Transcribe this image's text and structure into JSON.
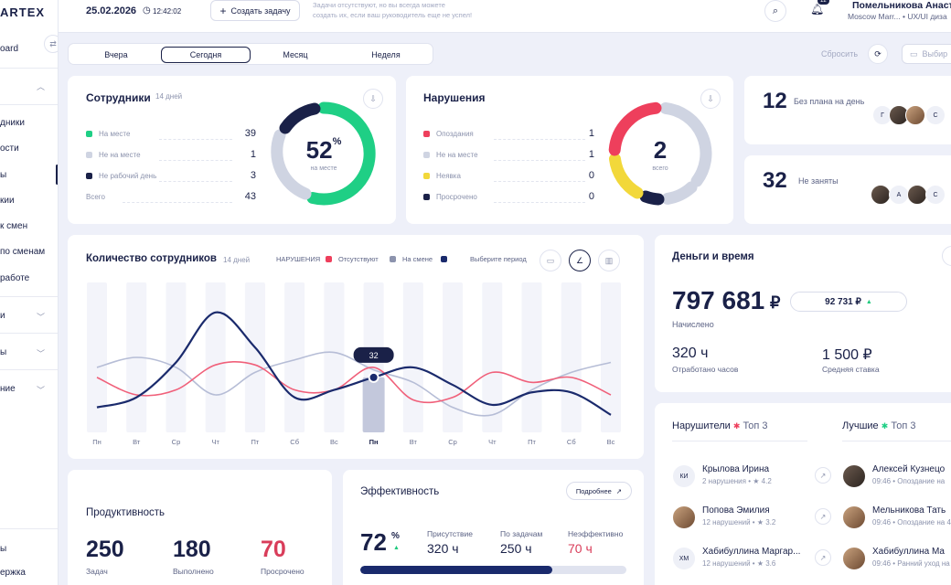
{
  "brand": "ARTEX",
  "sidebar": {
    "items": [
      {
        "label": "oard"
      },
      {
        "label": "дники"
      },
      {
        "label": "ости"
      },
      {
        "label": "ы"
      },
      {
        "label": "кии"
      },
      {
        "label": "к смен"
      },
      {
        "label": "по сменам"
      },
      {
        "label": "работе"
      },
      {
        "label": "и"
      },
      {
        "label": "ы"
      },
      {
        "label": "ние"
      },
      {
        "label": "ы"
      },
      {
        "label": "ержка"
      }
    ]
  },
  "topbar": {
    "date": "25.02.2026",
    "time": "12:42:02",
    "create_task": "Создать задачу",
    "hint_line1": "Задачи отсутствуют, но вы всегда можете",
    "hint_line2": "создать их, если ваш руководитель еще не успел!",
    "notif_count": "12",
    "user_name": "Помельникова Анаст",
    "user_meta": "Moscow Marr... • UX/UI диза"
  },
  "period_tabs": [
    "Вчера",
    "Сегодня",
    "Месяц",
    "Неделя"
  ],
  "active_tab": "Сегодня",
  "reset_label": "Сбросить",
  "pick_label": "Выбир",
  "employees": {
    "title": "Сотрудники",
    "period": "14 дней",
    "rows": [
      {
        "label": "На месте",
        "value": "39",
        "color": "#1fcf85"
      },
      {
        "label": "Не на месте",
        "value": "1",
        "color": "#cfd4e2"
      },
      {
        "label": "Не рабочий день",
        "value": "3",
        "color": "#1a2148"
      }
    ],
    "total_label": "Всего",
    "total_value": "43",
    "donut_value": "52",
    "donut_unit": "%",
    "donut_caption": "на месте"
  },
  "violations": {
    "title": "Нарушения",
    "rows": [
      {
        "label": "Опоздания",
        "value": "1",
        "color": "#ee3f5c"
      },
      {
        "label": "Не на месте",
        "value": "1",
        "color": "#cfd4e2"
      },
      {
        "label": "Неявка",
        "value": "0",
        "color": "#f2d83a"
      },
      {
        "label": "Просрочено",
        "value": "0",
        "color": "#1a2148"
      }
    ],
    "donut_value": "2",
    "donut_caption": "всего"
  },
  "no_plan": {
    "count": "12",
    "label": "Без плана на день",
    "avatars": [
      "Г",
      "",
      "",
      "С"
    ]
  },
  "not_busy": {
    "count": "32",
    "label": "Не заняты",
    "avatars": [
      "",
      "А",
      "",
      "С"
    ]
  },
  "headcount_chart_card": {
    "title": "Количество сотрудников",
    "period": "14 дней",
    "legend_violations": "НАРУШЕНИЯ",
    "legend_absent": "Отсутствуют",
    "legend_shift": "На смене",
    "period_pick": "Выберите период",
    "tooltip_value": "32"
  },
  "chart_data": {
    "type": "line",
    "categories": [
      "Пн",
      "Вт",
      "Ср",
      "Чт",
      "Пт",
      "Сб",
      "Вс",
      "Пн",
      "Вт",
      "Ср",
      "Чт",
      "Пт",
      "Сб",
      "Вс"
    ],
    "highlight_index": 7,
    "series": [
      {
        "name": "На смене",
        "color": "#1a2a6c",
        "values": [
          20,
          24,
          38,
          58,
          44,
          24,
          27,
          32,
          36,
          29,
          21,
          26,
          26,
          17
        ]
      },
      {
        "name": "Отсутствуют",
        "color": "#f0607a",
        "values": [
          32,
          25,
          27,
          37,
          37,
          27,
          27,
          36,
          23,
          24,
          34,
          30,
          32,
          25
        ]
      },
      {
        "name": "",
        "color": "#b6bdd6",
        "values": [
          36,
          40,
          36,
          25,
          34,
          39,
          42,
          35,
          30,
          20,
          17,
          27,
          34,
          38
        ]
      }
    ],
    "ylim": [
      10,
      70
    ]
  },
  "money": {
    "title": "Деньги и время",
    "amount": "797 681",
    "currency": "₽",
    "delta": "92 731 ₽",
    "accrued_label": "Начислено",
    "hours": "320 ч",
    "hours_label": "Отработано часов",
    "rate": "1 500 ₽",
    "rate_label": "Средняя ставка"
  },
  "violators": {
    "title": "Нарушители",
    "top": "Топ 3",
    "people": [
      {
        "initials": "КИ",
        "name": "Крылова Ирина",
        "meta": "2 нарушения • ",
        "score": "4.2"
      },
      {
        "initials": "",
        "name": "Попова Эмилия",
        "meta": "12 нарушений • ",
        "score": "3.2"
      },
      {
        "initials": "ХМ",
        "name": "Хабибуллина Маргар...",
        "meta": "12 нарушений • ",
        "score": "3.6"
      }
    ]
  },
  "best": {
    "title": "Лучшие",
    "top": "Топ 3",
    "people": [
      {
        "name": "Алексей Кузнецо",
        "meta": "09:46 • Опоздание на"
      },
      {
        "name": "Мельникова Тать",
        "meta": "09:46 • Опоздание на 45"
      },
      {
        "name": "Хабибуллина Ма",
        "meta": "09:46 • Ранний уход на"
      }
    ]
  },
  "productivity": {
    "title": "Продуктивность",
    "tasks": "250",
    "tasks_label": "Задач",
    "done": "180",
    "done_label": "Выполнено",
    "overdue": "70",
    "overdue_label": "Просрочено"
  },
  "efficiency": {
    "title": "Эффективность",
    "more": "Подробнее",
    "percent": "72",
    "percent_unit": "%",
    "present_label": "Присутствие",
    "present": "320 ч",
    "tasks_label": "По задачам",
    "tasks": "250 ч",
    "ineff_label": "Неэффективно",
    "ineff": "70 ч",
    "progress": 0.72
  },
  "colors": {
    "navy": "#1a2148",
    "green": "#1fcf85",
    "red": "#ee3f5c",
    "yellow": "#f2d83a",
    "grey": "#cfd4e2"
  }
}
